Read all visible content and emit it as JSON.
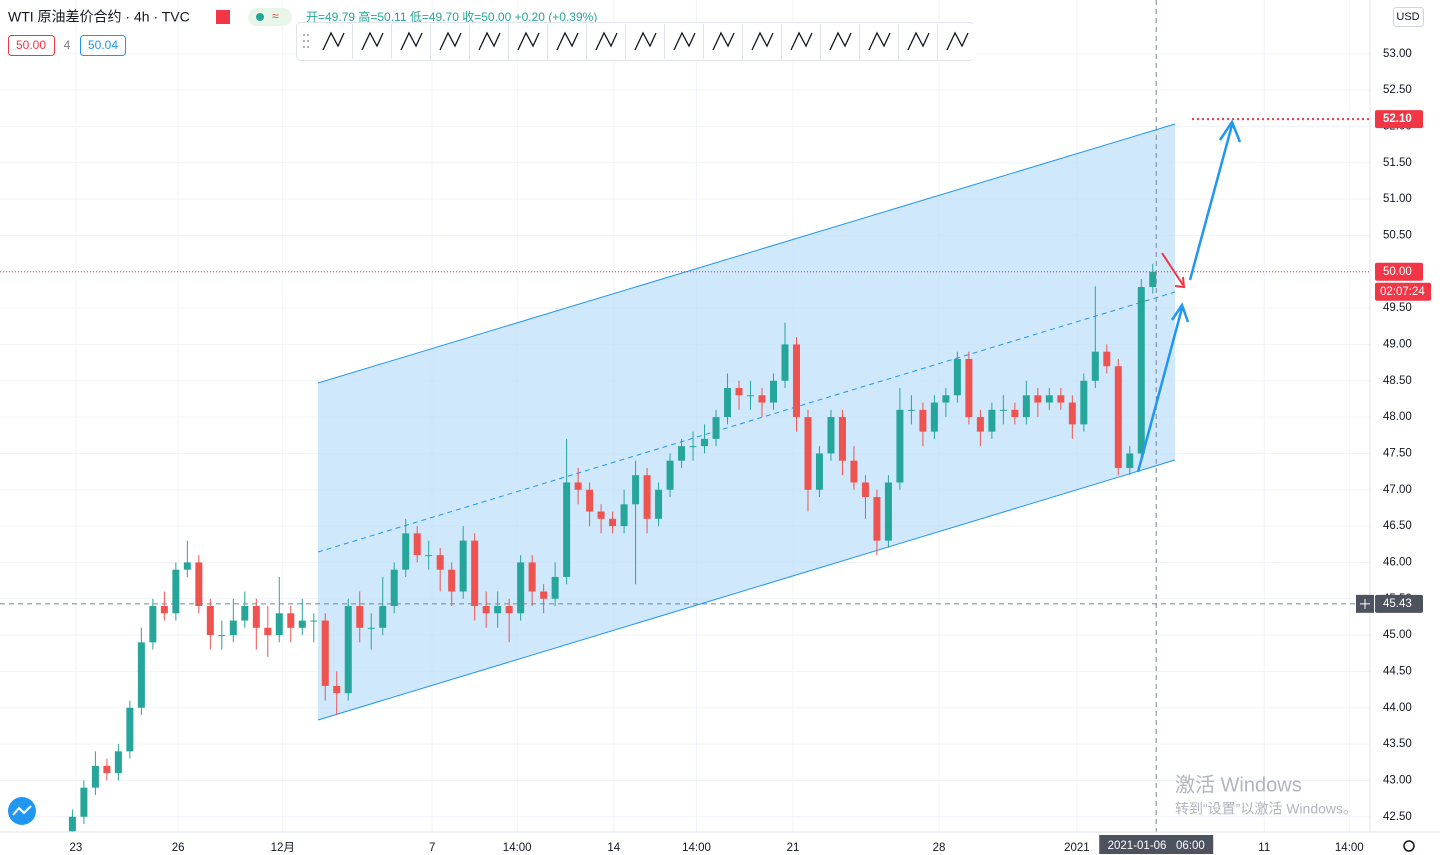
{
  "header": {
    "symbol": "WTI 原油差价合约 · 4h · TVC",
    "ohlc": "开=49.79 高=50.11 低=49.70 收=50.00 +0.20 (+0.39%)",
    "bid": "50.00",
    "spread": "4",
    "ask": "50.04",
    "currency": "USD"
  },
  "watermark": {
    "title": "激活 Windows",
    "text": "转到“设置”以激活 Windows。"
  },
  "chart_data": {
    "type": "candlestick",
    "up_color": "#26a69a",
    "down_color": "#ef5350",
    "open": [
      42.3,
      42.5,
      42.9,
      43.2,
      43.1,
      43.4,
      44.0,
      44.9,
      45.4,
      45.3,
      45.9,
      46.0,
      45.4,
      45.0,
      45.0,
      45.2,
      45.4,
      45.1,
      45.0,
      45.3,
      45.1,
      45.2,
      45.2,
      44.3,
      44.2,
      45.4,
      45.1,
      45.1,
      45.4,
      45.9,
      46.4,
      46.1,
      46.1,
      45.9,
      45.6,
      46.3,
      45.4,
      45.3,
      45.4,
      45.3,
      46.0,
      45.6,
      45.5,
      45.8,
      47.1,
      47.0,
      46.7,
      46.6,
      46.5,
      46.8,
      47.2,
      46.6,
      47.0,
      47.4,
      47.6,
      47.6,
      47.7,
      48.0,
      48.4,
      48.3,
      48.3,
      48.2,
      48.5,
      49.0,
      48.0,
      47.0,
      47.5,
      48.0,
      47.4,
      47.1,
      46.9,
      46.3,
      47.1,
      48.1,
      48.1,
      47.8,
      48.2,
      48.3,
      48.8,
      48.0,
      47.8,
      48.1,
      48.1,
      48.0,
      48.3,
      48.2,
      48.3,
      48.2,
      47.9,
      48.5,
      48.9,
      48.7,
      47.3,
      47.5,
      49.79
    ],
    "high": [
      42.6,
      43.0,
      43.4,
      43.3,
      43.5,
      44.1,
      45.1,
      45.5,
      45.6,
      46.0,
      46.3,
      46.1,
      45.5,
      45.2,
      45.5,
      45.6,
      45.5,
      45.4,
      45.8,
      45.4,
      45.5,
      45.3,
      45.3,
      44.5,
      45.5,
      45.6,
      45.3,
      45.8,
      46.0,
      46.6,
      46.5,
      46.3,
      46.2,
      46.0,
      46.5,
      46.4,
      45.6,
      45.6,
      45.5,
      46.1,
      46.1,
      45.7,
      46.0,
      47.7,
      47.3,
      47.1,
      46.8,
      46.7,
      47.0,
      47.4,
      47.3,
      47.1,
      47.5,
      47.7,
      47.8,
      47.9,
      48.1,
      48.6,
      48.5,
      48.5,
      48.4,
      48.6,
      49.3,
      49.1,
      48.1,
      47.6,
      48.1,
      48.1,
      47.6,
      47.2,
      47.0,
      47.2,
      48.4,
      48.3,
      48.2,
      48.3,
      48.4,
      48.9,
      48.9,
      48.1,
      48.2,
      48.3,
      48.2,
      48.5,
      48.4,
      48.4,
      48.4,
      48.3,
      48.6,
      49.8,
      49.0,
      48.8,
      47.6,
      49.9,
      50.11
    ],
    "low": [
      42.2,
      42.4,
      42.8,
      43.0,
      43.0,
      43.3,
      43.9,
      44.8,
      45.2,
      45.2,
      45.8,
      45.3,
      44.8,
      44.8,
      44.9,
      45.1,
      44.8,
      44.7,
      44.9,
      44.9,
      45.0,
      44.9,
      44.1,
      43.9,
      44.1,
      44.9,
      44.8,
      45.0,
      45.3,
      45.8,
      46.0,
      45.9,
      45.6,
      45.4,
      45.5,
      45.2,
      45.1,
      45.1,
      44.9,
      45.2,
      45.4,
      45.3,
      45.4,
      45.7,
      46.8,
      46.5,
      46.4,
      46.4,
      46.4,
      45.7,
      46.4,
      46.5,
      46.9,
      47.3,
      47.4,
      47.5,
      47.6,
      47.9,
      48.1,
      48.1,
      48.0,
      48.1,
      48.4,
      47.8,
      46.7,
      46.9,
      47.4,
      47.2,
      47.0,
      46.6,
      46.1,
      46.2,
      47.0,
      47.9,
      47.6,
      47.7,
      48.0,
      48.2,
      47.9,
      47.6,
      47.7,
      47.9,
      47.9,
      47.9,
      48.0,
      48.1,
      48.1,
      47.7,
      47.8,
      48.4,
      48.6,
      47.2,
      47.2,
      47.4,
      49.7
    ],
    "close": [
      42.5,
      42.9,
      43.2,
      43.1,
      43.4,
      44.0,
      44.9,
      45.4,
      45.3,
      45.9,
      46.0,
      45.4,
      45.0,
      45.0,
      45.2,
      45.4,
      45.1,
      45.0,
      45.3,
      45.1,
      45.2,
      45.2,
      44.3,
      44.2,
      45.4,
      45.1,
      45.1,
      45.4,
      45.9,
      46.4,
      46.1,
      46.1,
      45.9,
      45.6,
      46.3,
      45.4,
      45.3,
      45.4,
      45.3,
      46.0,
      45.6,
      45.5,
      45.8,
      47.1,
      47.0,
      46.7,
      46.6,
      46.5,
      46.8,
      47.2,
      46.6,
      47.0,
      47.4,
      47.6,
      47.6,
      47.7,
      48.0,
      48.4,
      48.3,
      48.3,
      48.2,
      48.5,
      49.0,
      48.0,
      47.0,
      47.5,
      48.0,
      47.4,
      47.1,
      46.9,
      46.3,
      47.1,
      48.1,
      48.1,
      47.8,
      48.2,
      48.3,
      48.8,
      48.0,
      47.8,
      48.1,
      48.1,
      48.0,
      48.3,
      48.2,
      48.3,
      48.2,
      47.9,
      48.5,
      48.9,
      48.7,
      47.3,
      47.5,
      49.79,
      50.0
    ],
    "xlim": [
      -6.3,
      112.9
    ],
    "xticks": [
      {
        "value": 0.3,
        "label": "23"
      },
      {
        "value": 9.2,
        "label": "26"
      },
      {
        "value": 18.3,
        "label": "12月"
      },
      {
        "value": 31.3,
        "label": "7"
      },
      {
        "value": 38.7,
        "label": "14:00"
      },
      {
        "value": 47.1,
        "label": "14"
      },
      {
        "value": 54.3,
        "label": "14:00"
      },
      {
        "value": 62.7,
        "label": "21"
      },
      {
        "value": 75.4,
        "label": "28"
      },
      {
        "value": 87.4,
        "label": "2021"
      },
      {
        "value": 103.7,
        "label": "11"
      },
      {
        "value": 111.1,
        "label": "14:00"
      }
    ],
    "ylim": [
      42.29,
      53.74
    ],
    "yticks": [
      {
        "value": 42.5,
        "label": "42.50"
      },
      {
        "value": 43,
        "label": "43.00"
      },
      {
        "value": 43.5,
        "label": "43.50"
      },
      {
        "value": 44,
        "label": "44.00"
      },
      {
        "value": 44.5,
        "label": "44.50"
      },
      {
        "value": 45,
        "label": "45.00"
      },
      {
        "value": 45.5,
        "label": "45.50"
      },
      {
        "value": 46,
        "label": "46.00"
      },
      {
        "value": 46.5,
        "label": "46.50"
      },
      {
        "value": 47,
        "label": "47.00"
      },
      {
        "value": 47.5,
        "label": "47.50"
      },
      {
        "value": 48,
        "label": "48.00"
      },
      {
        "value": 48.5,
        "label": "48.50"
      },
      {
        "value": 49,
        "label": "49.00"
      },
      {
        "value": 49.5,
        "label": "49.50"
      },
      {
        "value": 50,
        "label": "50.00"
      },
      {
        "value": 50.5,
        "label": "50.50"
      },
      {
        "value": 51,
        "label": "51.00"
      },
      {
        "value": 51.5,
        "label": "51.50"
      },
      {
        "value": 52,
        "label": "52.00"
      },
      {
        "value": 52.5,
        "label": "52.50"
      },
      {
        "value": 53,
        "label": "53.00"
      }
    ],
    "grid": true,
    "target": {
      "value": 52.1,
      "label": "52.10"
    },
    "last_price": {
      "value": 50,
      "label": "50.00",
      "countdown": "02:07:24"
    },
    "crosshair": {
      "y": {
        "value": 45.43,
        "label": "45.43"
      },
      "x": {
        "value": 94.3,
        "label": "2021-01-06   06:00"
      }
    }
  }
}
